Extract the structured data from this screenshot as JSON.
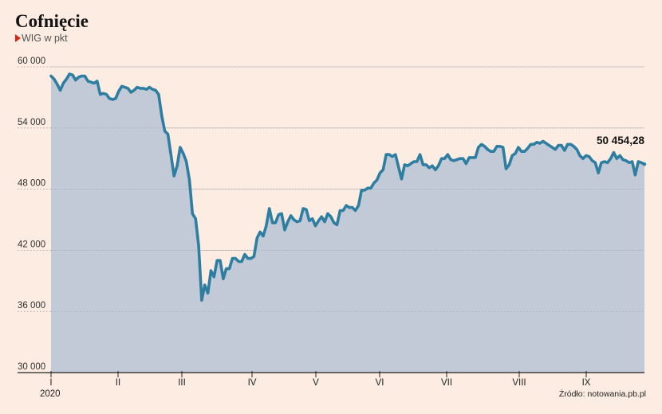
{
  "header": {
    "title": "Cofnięcie",
    "subtitle": "WIG w pkt"
  },
  "source": "Źródło: notowania.pb.pl",
  "colors": {
    "background": "#fcece2",
    "line": "#2e7ea1",
    "area": "#c2cad8",
    "marker": "#e0251b"
  },
  "chart_data": {
    "type": "area",
    "title": "Cofnięcie",
    "subtitle": "WIG w pkt",
    "ylim": [
      30000,
      61000
    ],
    "y_ticks": [
      30000,
      36000,
      42000,
      48000,
      54000,
      60000
    ],
    "y_tick_labels": [
      "30 000",
      "36 000",
      "42 000",
      "48 000",
      "54 000",
      "60 000"
    ],
    "x_ticks": [
      "I",
      "II",
      "III",
      "IV",
      "V",
      "VI",
      "VII",
      "VIII",
      "IX"
    ],
    "year_label": "2020",
    "grid": true,
    "last_value_label": "50 454,28",
    "values": [
      59100,
      58800,
      58300,
      57700,
      58400,
      58800,
      59300,
      59200,
      58700,
      59000,
      59100,
      59100,
      58600,
      58500,
      58400,
      58600,
      57300,
      57400,
      57300,
      56900,
      56800,
      56900,
      57600,
      58100,
      58000,
      57900,
      57500,
      57700,
      58000,
      57900,
      57900,
      57800,
      58000,
      57800,
      57700,
      57300,
      55200,
      53700,
      53400,
      51400,
      49300,
      50300,
      52100,
      51500,
      50700,
      48900,
      45600,
      45100,
      42500,
      37100,
      38600,
      37800,
      40000,
      39400,
      41000,
      41000,
      39200,
      40200,
      40200,
      41200,
      41200,
      40900,
      40900,
      41600,
      41200,
      41200,
      41400,
      43200,
      43800,
      43400,
      44400,
      46100,
      44700,
      44700,
      45500,
      45600,
      44000,
      44800,
      45400,
      45000,
      44800,
      44900,
      46100,
      46000,
      44900,
      45100,
      44400,
      44900,
      45300,
      44800,
      45600,
      45300,
      44700,
      44500,
      45900,
      45900,
      46400,
      46200,
      46200,
      45900,
      46400,
      47900,
      47900,
      48100,
      48100,
      48600,
      48900,
      49600,
      49900,
      51400,
      51400,
      51200,
      51400,
      50200,
      49000,
      50400,
      50300,
      50500,
      50700,
      50700,
      51400,
      50400,
      50400,
      50100,
      50300,
      49900,
      50300,
      51000,
      51000,
      51400,
      50900,
      50800,
      50900,
      51000,
      51000,
      50500,
      51100,
      51100,
      51100,
      52100,
      52400,
      52200,
      51900,
      51700,
      51700,
      52200,
      52200,
      52100,
      50000,
      50400,
      51300,
      51500,
      52100,
      51700,
      51700,
      52000,
      52400,
      52400,
      52600,
      52500,
      52700,
      52500,
      52300,
      52100,
      51900,
      52300,
      52300,
      51800,
      52400,
      52400,
      52200,
      51900,
      51300,
      51000,
      51300,
      51200,
      50800,
      50600,
      49600,
      50600,
      50700,
      50600,
      51000,
      51600,
      51000,
      51300,
      50900,
      50800,
      50600,
      50700,
      49400,
      50700,
      50600,
      50454
    ]
  }
}
